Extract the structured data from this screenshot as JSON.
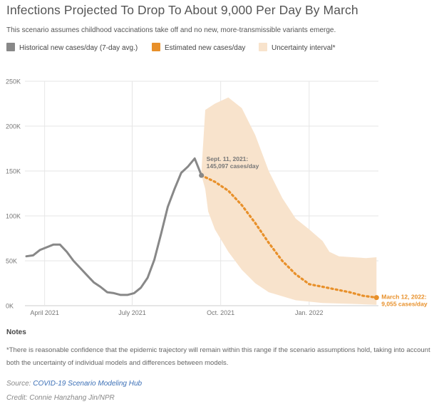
{
  "header": {
    "title": "Infections Projected To Drop To About 9,000 Per Day By March",
    "subtitle": "This scenario assumes childhood vaccinations take off and no new, more-transmissible variants emerge."
  },
  "legend": {
    "historical": "Historical new cases/day (7-day avg.)",
    "estimated": "Estimated new cases/day",
    "uncertainty": "Uncertainty interval*"
  },
  "colors": {
    "historical": "#888888",
    "estimated": "#e8902a",
    "uncertainty": "#f8e3cc",
    "grid": "#e6e6e6",
    "axis_text": "#777777",
    "annotation_hist": "#777777",
    "annotation_est": "#e8902a"
  },
  "chart_data": {
    "type": "line",
    "title": "Infections Projected To Drop To About 9,000 Per Day By March",
    "ylim": [
      0,
      250000
    ],
    "y_ticks": [
      0,
      50000,
      100000,
      150000,
      200000,
      250000
    ],
    "y_tick_labels": [
      "0K",
      "50K",
      "100K",
      "150K",
      "200K",
      "250K"
    ],
    "x_range": [
      "2021-03-13",
      "2022-03-14"
    ],
    "x_ticks": [
      {
        "date": "2021-04-01",
        "label": "April 2021"
      },
      {
        "date": "2021-07-01",
        "label": "July 2021"
      },
      {
        "date": "2021-10-01",
        "label": "Oct. 2021"
      },
      {
        "date": "2022-01-01",
        "label": "Jan. 2022"
      }
    ],
    "grid": true,
    "series": [
      {
        "name": "Historical new cases/day (7-day avg.)",
        "style": "solid",
        "points": [
          [
            "2021-03-13",
            55000
          ],
          [
            "2021-03-20",
            56000
          ],
          [
            "2021-03-27",
            62000
          ],
          [
            "2021-04-03",
            65000
          ],
          [
            "2021-04-10",
            68000
          ],
          [
            "2021-04-17",
            68000
          ],
          [
            "2021-04-24",
            60000
          ],
          [
            "2021-05-01",
            50000
          ],
          [
            "2021-05-08",
            42000
          ],
          [
            "2021-05-15",
            34000
          ],
          [
            "2021-05-22",
            26000
          ],
          [
            "2021-05-29",
            21000
          ],
          [
            "2021-06-05",
            15000
          ],
          [
            "2021-06-12",
            14000
          ],
          [
            "2021-06-19",
            12000
          ],
          [
            "2021-06-26",
            12000
          ],
          [
            "2021-07-03",
            14000
          ],
          [
            "2021-07-10",
            20000
          ],
          [
            "2021-07-17",
            31000
          ],
          [
            "2021-07-24",
            51000
          ],
          [
            "2021-07-31",
            80000
          ],
          [
            "2021-08-07",
            110000
          ],
          [
            "2021-08-14",
            130000
          ],
          [
            "2021-08-21",
            148000
          ],
          [
            "2021-08-28",
            155000
          ],
          [
            "2021-09-04",
            164000
          ],
          [
            "2021-09-11",
            145097
          ]
        ]
      },
      {
        "name": "Estimated new cases/day",
        "style": "dotted",
        "points": [
          [
            "2021-09-11",
            145097
          ],
          [
            "2021-09-25",
            138000
          ],
          [
            "2021-10-09",
            128000
          ],
          [
            "2021-10-23",
            112000
          ],
          [
            "2021-11-06",
            92000
          ],
          [
            "2021-11-20",
            70000
          ],
          [
            "2021-12-04",
            50000
          ],
          [
            "2021-12-18",
            35000
          ],
          [
            "2022-01-01",
            24000
          ],
          [
            "2022-01-15",
            21000
          ],
          [
            "2022-01-29",
            18000
          ],
          [
            "2022-02-12",
            15000
          ],
          [
            "2022-02-26",
            11000
          ],
          [
            "2022-03-12",
            9055
          ]
        ]
      }
    ],
    "uncertainty": {
      "name": "Uncertainty interval*",
      "upper": [
        [
          "2021-09-11",
          150000
        ],
        [
          "2021-09-15",
          218000
        ],
        [
          "2021-09-25",
          225000
        ],
        [
          "2021-10-09",
          232000
        ],
        [
          "2021-10-23",
          220000
        ],
        [
          "2021-11-06",
          190000
        ],
        [
          "2021-11-20",
          150000
        ],
        [
          "2021-12-04",
          120000
        ],
        [
          "2021-12-18",
          97000
        ],
        [
          "2022-01-01",
          85000
        ],
        [
          "2022-01-15",
          72000
        ],
        [
          "2022-01-22",
          60000
        ],
        [
          "2022-02-01",
          55000
        ],
        [
          "2022-02-15",
          54000
        ],
        [
          "2022-03-01",
          53000
        ],
        [
          "2022-03-12",
          54000
        ]
      ],
      "lower": [
        [
          "2022-03-12",
          1000
        ],
        [
          "2022-02-15",
          2000
        ],
        [
          "2022-01-15",
          3000
        ],
        [
          "2021-12-18",
          6000
        ],
        [
          "2021-11-20",
          15000
        ],
        [
          "2021-11-06",
          25000
        ],
        [
          "2021-10-23",
          40000
        ],
        [
          "2021-10-09",
          60000
        ],
        [
          "2021-09-25",
          85000
        ],
        [
          "2021-09-18",
          105000
        ],
        [
          "2021-09-15",
          130000
        ],
        [
          "2021-09-11",
          145000
        ]
      ]
    },
    "annotations": [
      {
        "date": "2021-09-11",
        "value": 145097,
        "line1": "Sept. 11, 2021:",
        "line2": "145,097 cases/day",
        "series": "historical"
      },
      {
        "date": "2022-03-12",
        "value": 9055,
        "line1": "March 12, 2022:",
        "line2": "9,055 cases/day",
        "series": "estimated"
      }
    ]
  },
  "notes": {
    "heading": "Notes",
    "body": "*There is reasonable confidence that the epidemic trajectory will remain within this range if the scenario assumptions hold, taking into account both the uncertainty of individual models and differences between models."
  },
  "source": {
    "label": "Source:",
    "link_text": "COVID-19 Scenario Modeling Hub"
  },
  "credit": "Credit: Connie Hanzhang Jin/NPR"
}
